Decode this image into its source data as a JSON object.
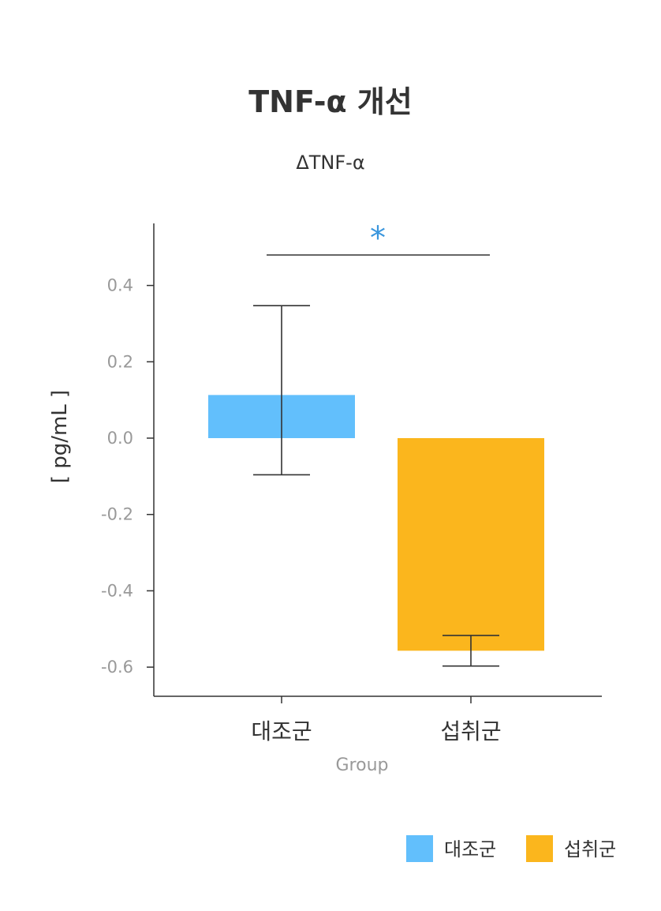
{
  "chart_data": {
    "type": "bar",
    "title": "TNF-α 개선",
    "subtitle": "ΔTNF-α",
    "xlabel": "Group",
    "ylabel": "[ pg/mL ]",
    "categories": [
      "대조군",
      "섭취군"
    ],
    "values": [
      0.113,
      -0.557
    ],
    "error_low": [
      -0.096,
      -0.597
    ],
    "error_high": [
      0.347,
      -0.517
    ],
    "colors": [
      "#62bffc",
      "#fbb61d"
    ],
    "ylim": [
      -0.675,
      0.565
    ],
    "yticks": [
      0.4,
      0.2,
      0.0,
      -0.2,
      -0.4,
      -0.6
    ],
    "ytick_labels": [
      "0.4",
      "0.2",
      "0.0",
      "-0.2",
      "-0.4",
      "-0.6"
    ],
    "significance": {
      "marker": "*",
      "between": [
        "대조군",
        "섭취군"
      ],
      "color": "#3a96dd"
    },
    "legend": {
      "placement": "bottom-right",
      "entries": [
        {
          "label": "대조군",
          "color": "#62bffc"
        },
        {
          "label": "섭취군",
          "color": "#fbb61d"
        }
      ]
    },
    "grid": false
  }
}
